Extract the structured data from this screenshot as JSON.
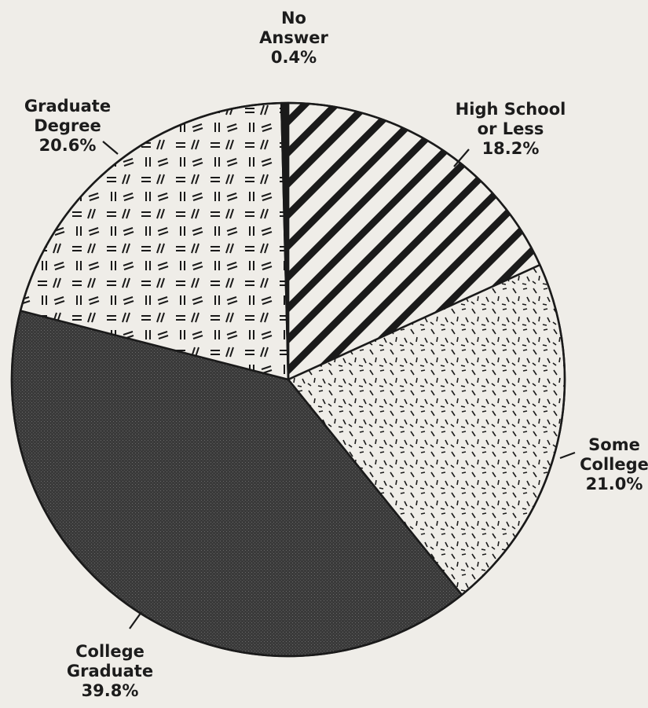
{
  "chart_data": {
    "type": "pie",
    "slices": [
      {
        "name_lines": [
          "High School",
          "or Less"
        ],
        "value": 18.2,
        "label": "18.2%"
      },
      {
        "name_lines": [
          "Some",
          "College"
        ],
        "value": 21.0,
        "label": "21.0%"
      },
      {
        "name_lines": [
          "College",
          "Graduate"
        ],
        "value": 39.8,
        "label": "39.8%"
      },
      {
        "name_lines": [
          "Graduate",
          "Degree"
        ],
        "value": 20.6,
        "label": "20.6%"
      },
      {
        "name_lines": [
          "No",
          "Answer"
        ],
        "value": 0.4,
        "label": "0.4%"
      }
    ],
    "start_angle_deg": 0,
    "direction": "clockwise",
    "fill_styles": [
      "diagonal-stripes",
      "short-dashes",
      "solid-dark",
      "double-dashes",
      "solid-black"
    ],
    "colors": {
      "background": "#efede8",
      "outline": "#1a1a1a",
      "dark_fill": "#3d3d3d"
    }
  }
}
